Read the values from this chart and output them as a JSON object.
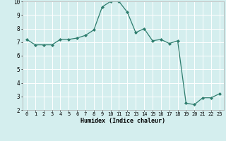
{
  "x": [
    0,
    1,
    2,
    3,
    4,
    5,
    6,
    7,
    8,
    9,
    10,
    11,
    12,
    13,
    14,
    15,
    16,
    17,
    18,
    19,
    20,
    21,
    22,
    23
  ],
  "y": [
    7.2,
    6.8,
    6.8,
    6.8,
    7.2,
    7.2,
    7.3,
    7.5,
    7.9,
    9.6,
    10.0,
    10.0,
    9.2,
    7.7,
    8.0,
    7.1,
    7.2,
    6.9,
    7.1,
    2.5,
    2.4,
    2.9,
    2.9,
    3.2
  ],
  "xlabel": "Humidex (Indice chaleur)",
  "bg_color": "#d4eeee",
  "line_color": "#2e7d6e",
  "grid_color": "#ffffff",
  "ylim": [
    2,
    10
  ],
  "xlim": [
    -0.5,
    23.5
  ],
  "yticks": [
    2,
    3,
    4,
    5,
    6,
    7,
    8,
    9,
    10
  ],
  "xticks": [
    0,
    1,
    2,
    3,
    4,
    5,
    6,
    7,
    8,
    9,
    10,
    11,
    12,
    13,
    14,
    15,
    16,
    17,
    18,
    19,
    20,
    21,
    22,
    23
  ]
}
